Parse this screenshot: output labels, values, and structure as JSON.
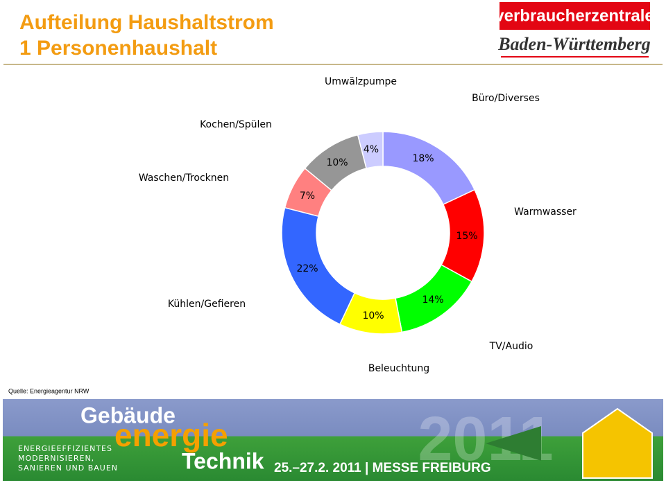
{
  "header": {
    "title_line1": "Aufteilung Haushaltstrom",
    "title_line2": "1 Personenhaushalt",
    "logo_top": "verbraucherzentrale",
    "logo_bottom": "Baden-Württemberg"
  },
  "chart_data": {
    "type": "donut",
    "categories": [
      "Büro/Diverses",
      "Warmwasser",
      "TV/Audio",
      "Beleuchtung",
      "Kühlen/Gefieren",
      "Waschen/Trocknen",
      "Kochen/Spülen",
      "Umwälzpumpe"
    ],
    "values": [
      18,
      15,
      14,
      10,
      22,
      7,
      10,
      4
    ],
    "value_labels": [
      "18%",
      "15%",
      "14%",
      "10%",
      "22%",
      "7%",
      "10%",
      "4%"
    ],
    "colors": [
      "#9999ff",
      "#ff0000",
      "#00ff00",
      "#ffff00",
      "#3366ff",
      "#ff8080",
      "#969696",
      "#ccccff"
    ]
  },
  "source": "Quelle: Energieagentur NRW",
  "banner": {
    "word1": "Gebäude",
    "word2": "energie",
    "word3": "Technik",
    "year": "2011",
    "tagline": [
      "ENERGIEEFFIZIENTES",
      "MODERNISIEREN,",
      "SANIEREN UND BAUEN"
    ],
    "date": "25.–27.2. 2011 | MESSE FREIBURG"
  }
}
